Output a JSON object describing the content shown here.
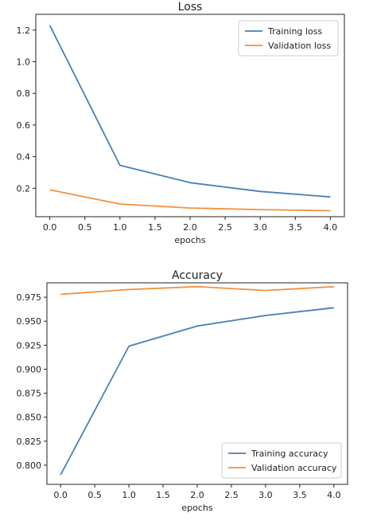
{
  "chart_data": [
    {
      "type": "line",
      "title": "Loss",
      "xlabel": "epochs",
      "ylabel": "",
      "x": [
        0,
        1,
        2,
        3,
        4
      ],
      "xlim": [
        -0.2,
        4.2
      ],
      "ylim": [
        0.02,
        1.3
      ],
      "xticks": [
        0,
        0.5,
        1,
        1.5,
        2,
        2.5,
        3,
        3.5,
        4
      ],
      "xtick_labels": [
        "0.0",
        "0.5",
        "1.0",
        "1.5",
        "2.0",
        "2.5",
        "3.0",
        "3.5",
        "4.0"
      ],
      "yticks": [
        0.2,
        0.4,
        0.6,
        0.8,
        1.0,
        1.2
      ],
      "ytick_labels": [
        "0.2",
        "0.4",
        "0.6",
        "0.8",
        "1.0",
        "1.2"
      ],
      "legend": "top-right",
      "grid": false,
      "series": [
        {
          "name": "Training loss",
          "color": "#4a7fb5",
          "values": [
            1.23,
            0.345,
            0.235,
            0.18,
            0.145
          ]
        },
        {
          "name": "Validation loss",
          "color": "#f2913d",
          "values": [
            0.19,
            0.1,
            0.075,
            0.065,
            0.058
          ]
        }
      ]
    },
    {
      "type": "line",
      "title": "Accuracy",
      "xlabel": "epochs",
      "ylabel": "",
      "x": [
        0,
        1,
        2,
        3,
        4
      ],
      "xlim": [
        -0.2,
        4.2
      ],
      "ylim": [
        0.78,
        0.99
      ],
      "xticks": [
        0,
        0.5,
        1,
        1.5,
        2,
        2.5,
        3,
        3.5,
        4
      ],
      "xtick_labels": [
        "0.0",
        "0.5",
        "1.0",
        "1.5",
        "2.0",
        "2.5",
        "3.0",
        "3.5",
        "4.0"
      ],
      "yticks": [
        0.8,
        0.825,
        0.85,
        0.875,
        0.9,
        0.925,
        0.95,
        0.975
      ],
      "ytick_labels": [
        "0.800",
        "0.825",
        "0.850",
        "0.875",
        "0.900",
        "0.925",
        "0.950",
        "0.975"
      ],
      "legend": "bottom-right",
      "grid": false,
      "series": [
        {
          "name": "Training accuracy",
          "color": "#4a7fb5",
          "values": [
            0.79,
            0.924,
            0.945,
            0.956,
            0.964
          ]
        },
        {
          "name": "Validation accuracy",
          "color": "#f2913d",
          "values": [
            0.978,
            0.983,
            0.986,
            0.982,
            0.986
          ]
        }
      ]
    }
  ]
}
